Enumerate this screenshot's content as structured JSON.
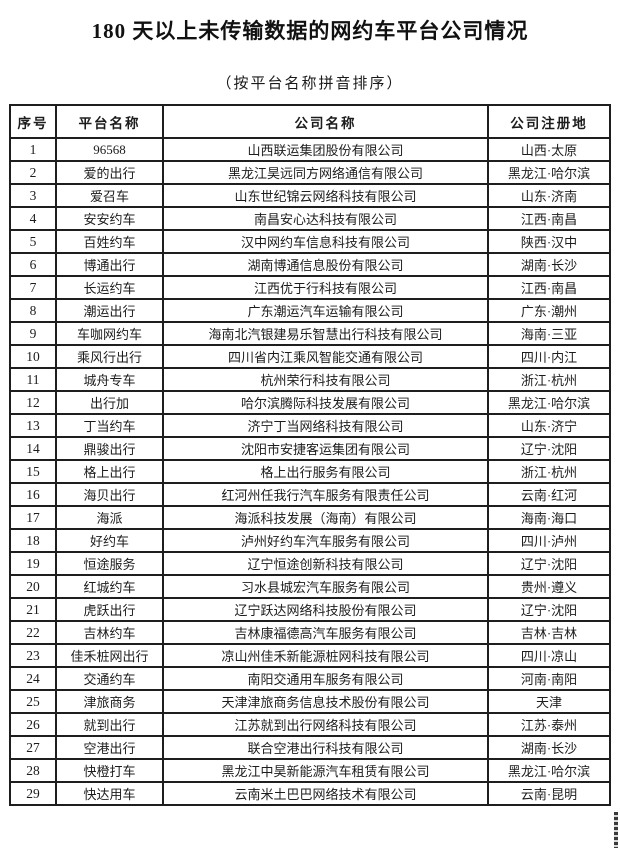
{
  "page": {
    "title": "180 天以上未传输数据的网约车平台公司情况",
    "subtitle": "（按平台名称拼音排序）",
    "colors": {
      "ink": "#1a1a1a",
      "background": "#ffffff",
      "table_border": "#1e1e1e"
    }
  },
  "table": {
    "headers": {
      "index": "序号",
      "platform": "平台名称",
      "company": "公司名称",
      "location": "公司注册地"
    },
    "rows": [
      {
        "no": "1",
        "platform": "96568",
        "company": "山西联运集团股份有限公司",
        "location": "山西·太原"
      },
      {
        "no": "2",
        "platform": "爱的出行",
        "company": "黑龙江昊远同方网络通信有限公司",
        "location": "黑龙江·哈尔滨"
      },
      {
        "no": "3",
        "platform": "爱召车",
        "company": "山东世纪锦云网络科技有限公司",
        "location": "山东·济南"
      },
      {
        "no": "4",
        "platform": "安安约车",
        "company": "南昌安心达科技有限公司",
        "location": "江西·南昌"
      },
      {
        "no": "5",
        "platform": "百姓约车",
        "company": "汉中网约车信息科技有限公司",
        "location": "陕西·汉中"
      },
      {
        "no": "6",
        "platform": "博通出行",
        "company": "湖南博通信息股份有限公司",
        "location": "湖南·长沙"
      },
      {
        "no": "7",
        "platform": "长运约车",
        "company": "江西优于行科技有限公司",
        "location": "江西·南昌"
      },
      {
        "no": "8",
        "platform": "潮运出行",
        "company": "广东潮运汽车运输有限公司",
        "location": "广东·潮州"
      },
      {
        "no": "9",
        "platform": "车咖网约车",
        "company": "海南北汽银建易乐智慧出行科技有限公司",
        "location": "海南·三亚"
      },
      {
        "no": "10",
        "platform": "乘风行出行",
        "company": "四川省内江乘风智能交通有限公司",
        "location": "四川·内江"
      },
      {
        "no": "11",
        "platform": "城舟专车",
        "company": "杭州荣行科技有限公司",
        "location": "浙江·杭州"
      },
      {
        "no": "12",
        "platform": "出行加",
        "company": "哈尔滨腾际科技发展有限公司",
        "location": "黑龙江·哈尔滨"
      },
      {
        "no": "13",
        "platform": "丁当约车",
        "company": "济宁丁当网络科技有限公司",
        "location": "山东·济宁"
      },
      {
        "no": "14",
        "platform": "鼎骏出行",
        "company": "沈阳市安捷客运集团有限公司",
        "location": "辽宁·沈阳"
      },
      {
        "no": "15",
        "platform": "格上出行",
        "company": "格上出行服务有限公司",
        "location": "浙江·杭州"
      },
      {
        "no": "16",
        "platform": "海贝出行",
        "company": "红河州任我行汽车服务有限责任公司",
        "location": "云南·红河"
      },
      {
        "no": "17",
        "platform": "海派",
        "company": "海派科技发展（海南）有限公司",
        "location": "海南·海口"
      },
      {
        "no": "18",
        "platform": "好约车",
        "company": "泸州好约车汽车服务有限公司",
        "location": "四川·泸州"
      },
      {
        "no": "19",
        "platform": "恒途服务",
        "company": "辽宁恒途创新科技有限公司",
        "location": "辽宁·沈阳"
      },
      {
        "no": "20",
        "platform": "红城约车",
        "company": "习水县城宏汽车服务有限公司",
        "location": "贵州·遵义"
      },
      {
        "no": "21",
        "platform": "虎跃出行",
        "company": "辽宁跃达网络科技股份有限公司",
        "location": "辽宁·沈阳"
      },
      {
        "no": "22",
        "platform": "吉林约车",
        "company": "吉林康福德高汽车服务有限公司",
        "location": "吉林·吉林"
      },
      {
        "no": "23",
        "platform": "佳禾桩网出行",
        "company": "凉山州佳禾新能源桩网科技有限公司",
        "location": "四川·凉山"
      },
      {
        "no": "24",
        "platform": "交通约车",
        "company": "南阳交通用车服务有限公司",
        "location": "河南·南阳"
      },
      {
        "no": "25",
        "platform": "津旅商务",
        "company": "天津津旅商务信息技术股份有限公司",
        "location": "天津"
      },
      {
        "no": "26",
        "platform": "就到出行",
        "company": "江苏就到出行网络科技有限公司",
        "location": "江苏·泰州"
      },
      {
        "no": "27",
        "platform": "空港出行",
        "company": "联合空港出行科技有限公司",
        "location": "湖南·长沙"
      },
      {
        "no": "28",
        "platform": "快橙打车",
        "company": "黑龙江中昊新能源汽车租赁有限公司",
        "location": "黑龙江·哈尔滨"
      },
      {
        "no": "29",
        "platform": "快达用车",
        "company": "云南米土巴巴网络技术有限公司",
        "location": "云南·昆明"
      }
    ]
  }
}
